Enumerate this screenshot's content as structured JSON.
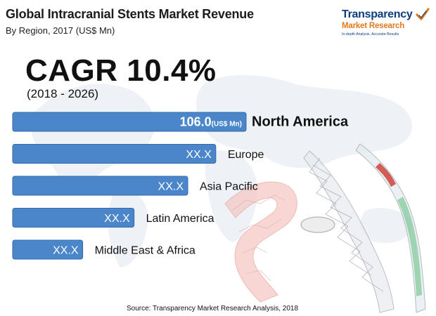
{
  "header": {
    "title": "Global Intracranial Stents Market Revenue",
    "subtitle": "By Region, 2017 (US$ Mn)"
  },
  "logo": {
    "brand": "Transparency",
    "line2": "Market Research",
    "line3": "In-depth Analysis. Accurate Results",
    "check_icon": "checkmark-icon"
  },
  "cagr": {
    "headline": "CAGR 10.4%",
    "period": "(2018 - 2026)"
  },
  "colors": {
    "bar": "#4a86c9",
    "bar_edge": "#2f6aaa",
    "label_text": "#ffffff",
    "region_text": "#111111"
  },
  "chart_data": {
    "type": "bar",
    "orientation": "horizontal",
    "categories": [
      "North America",
      "Europe",
      "Asia Pacific",
      "Latin America",
      "Middle East & Africa"
    ],
    "values": [
      106.0,
      null,
      null,
      null,
      null
    ],
    "value_labels": [
      "106.0",
      "XX.X",
      "XX.X",
      "XX.X",
      "XX.X"
    ],
    "unit_label": "(US$ Mn)",
    "title": "Global Intracranial Stents Market Revenue",
    "subtitle": "By Region, 2017 (US$ Mn)",
    "xlabel": "",
    "ylabel": "",
    "relative_bar_lengths": [
      1.0,
      0.87,
      0.75,
      0.52,
      0.3
    ],
    "grid": false,
    "legend": "none"
  },
  "footer": {
    "source": "Source: Transparency Market Research Analysis, 2018"
  }
}
